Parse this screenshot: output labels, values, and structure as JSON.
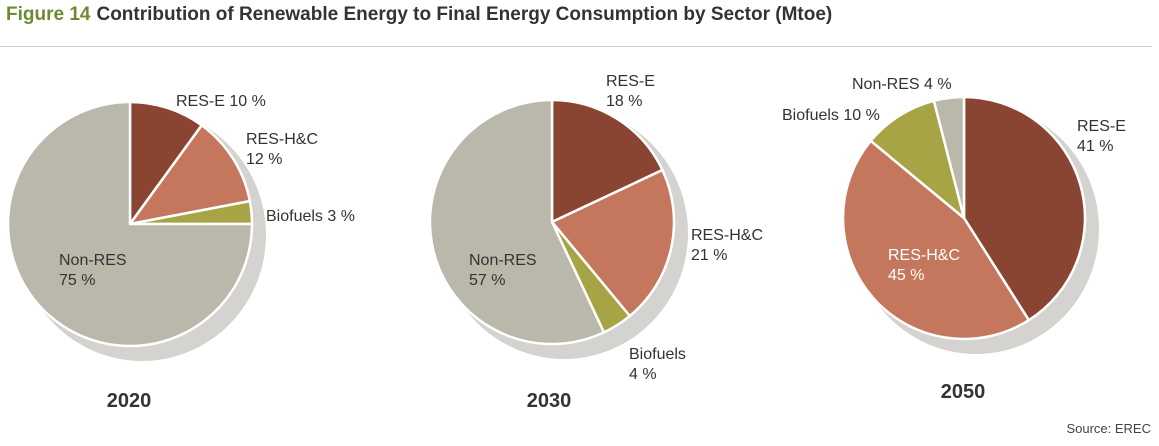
{
  "header": {
    "figure_label": "Figure 14",
    "title": "Contribution of Renewable Energy to Final Energy Consumption by Sector (Mtoe)"
  },
  "source": "Source: EREC",
  "colors": {
    "RES-E": "#8a4532",
    "RES-H&C": "#c4775c",
    "Biofuels": "#a6a444",
    "Non-RES": "#bab7ab",
    "shadow": "#d4d3cf",
    "title_accent": "#6e8a2f"
  },
  "chart_data": [
    {
      "type": "pie",
      "title": "2020",
      "slices": [
        {
          "name": "RES-E",
          "pct": 10,
          "pct_label": "10 %"
        },
        {
          "name": "RES-H&C",
          "pct": 12,
          "pct_label": "12 %"
        },
        {
          "name": "Biofuels",
          "pct": 3,
          "pct_label": "3 %"
        },
        {
          "name": "Non-RES",
          "pct": 75,
          "pct_label": "75 %"
        }
      ]
    },
    {
      "type": "pie",
      "title": "2030",
      "slices": [
        {
          "name": "RES-E",
          "pct": 18,
          "pct_label": "18 %"
        },
        {
          "name": "RES-H&C",
          "pct": 21,
          "pct_label": "21 %"
        },
        {
          "name": "Biofuels",
          "pct": 4,
          "pct_label": "4 %"
        },
        {
          "name": "Non-RES",
          "pct": 57,
          "pct_label": "57 %"
        }
      ]
    },
    {
      "type": "pie",
      "title": "2050",
      "slices": [
        {
          "name": "RES-E",
          "pct": 41,
          "pct_label": "41 %"
        },
        {
          "name": "RES-H&C",
          "pct": 45,
          "pct_label": "45 %"
        },
        {
          "name": "Biofuels",
          "pct": 10,
          "pct_label": "10 %"
        },
        {
          "name": "Non-RES",
          "pct": 4,
          "pct_label": "4 %"
        }
      ]
    }
  ]
}
